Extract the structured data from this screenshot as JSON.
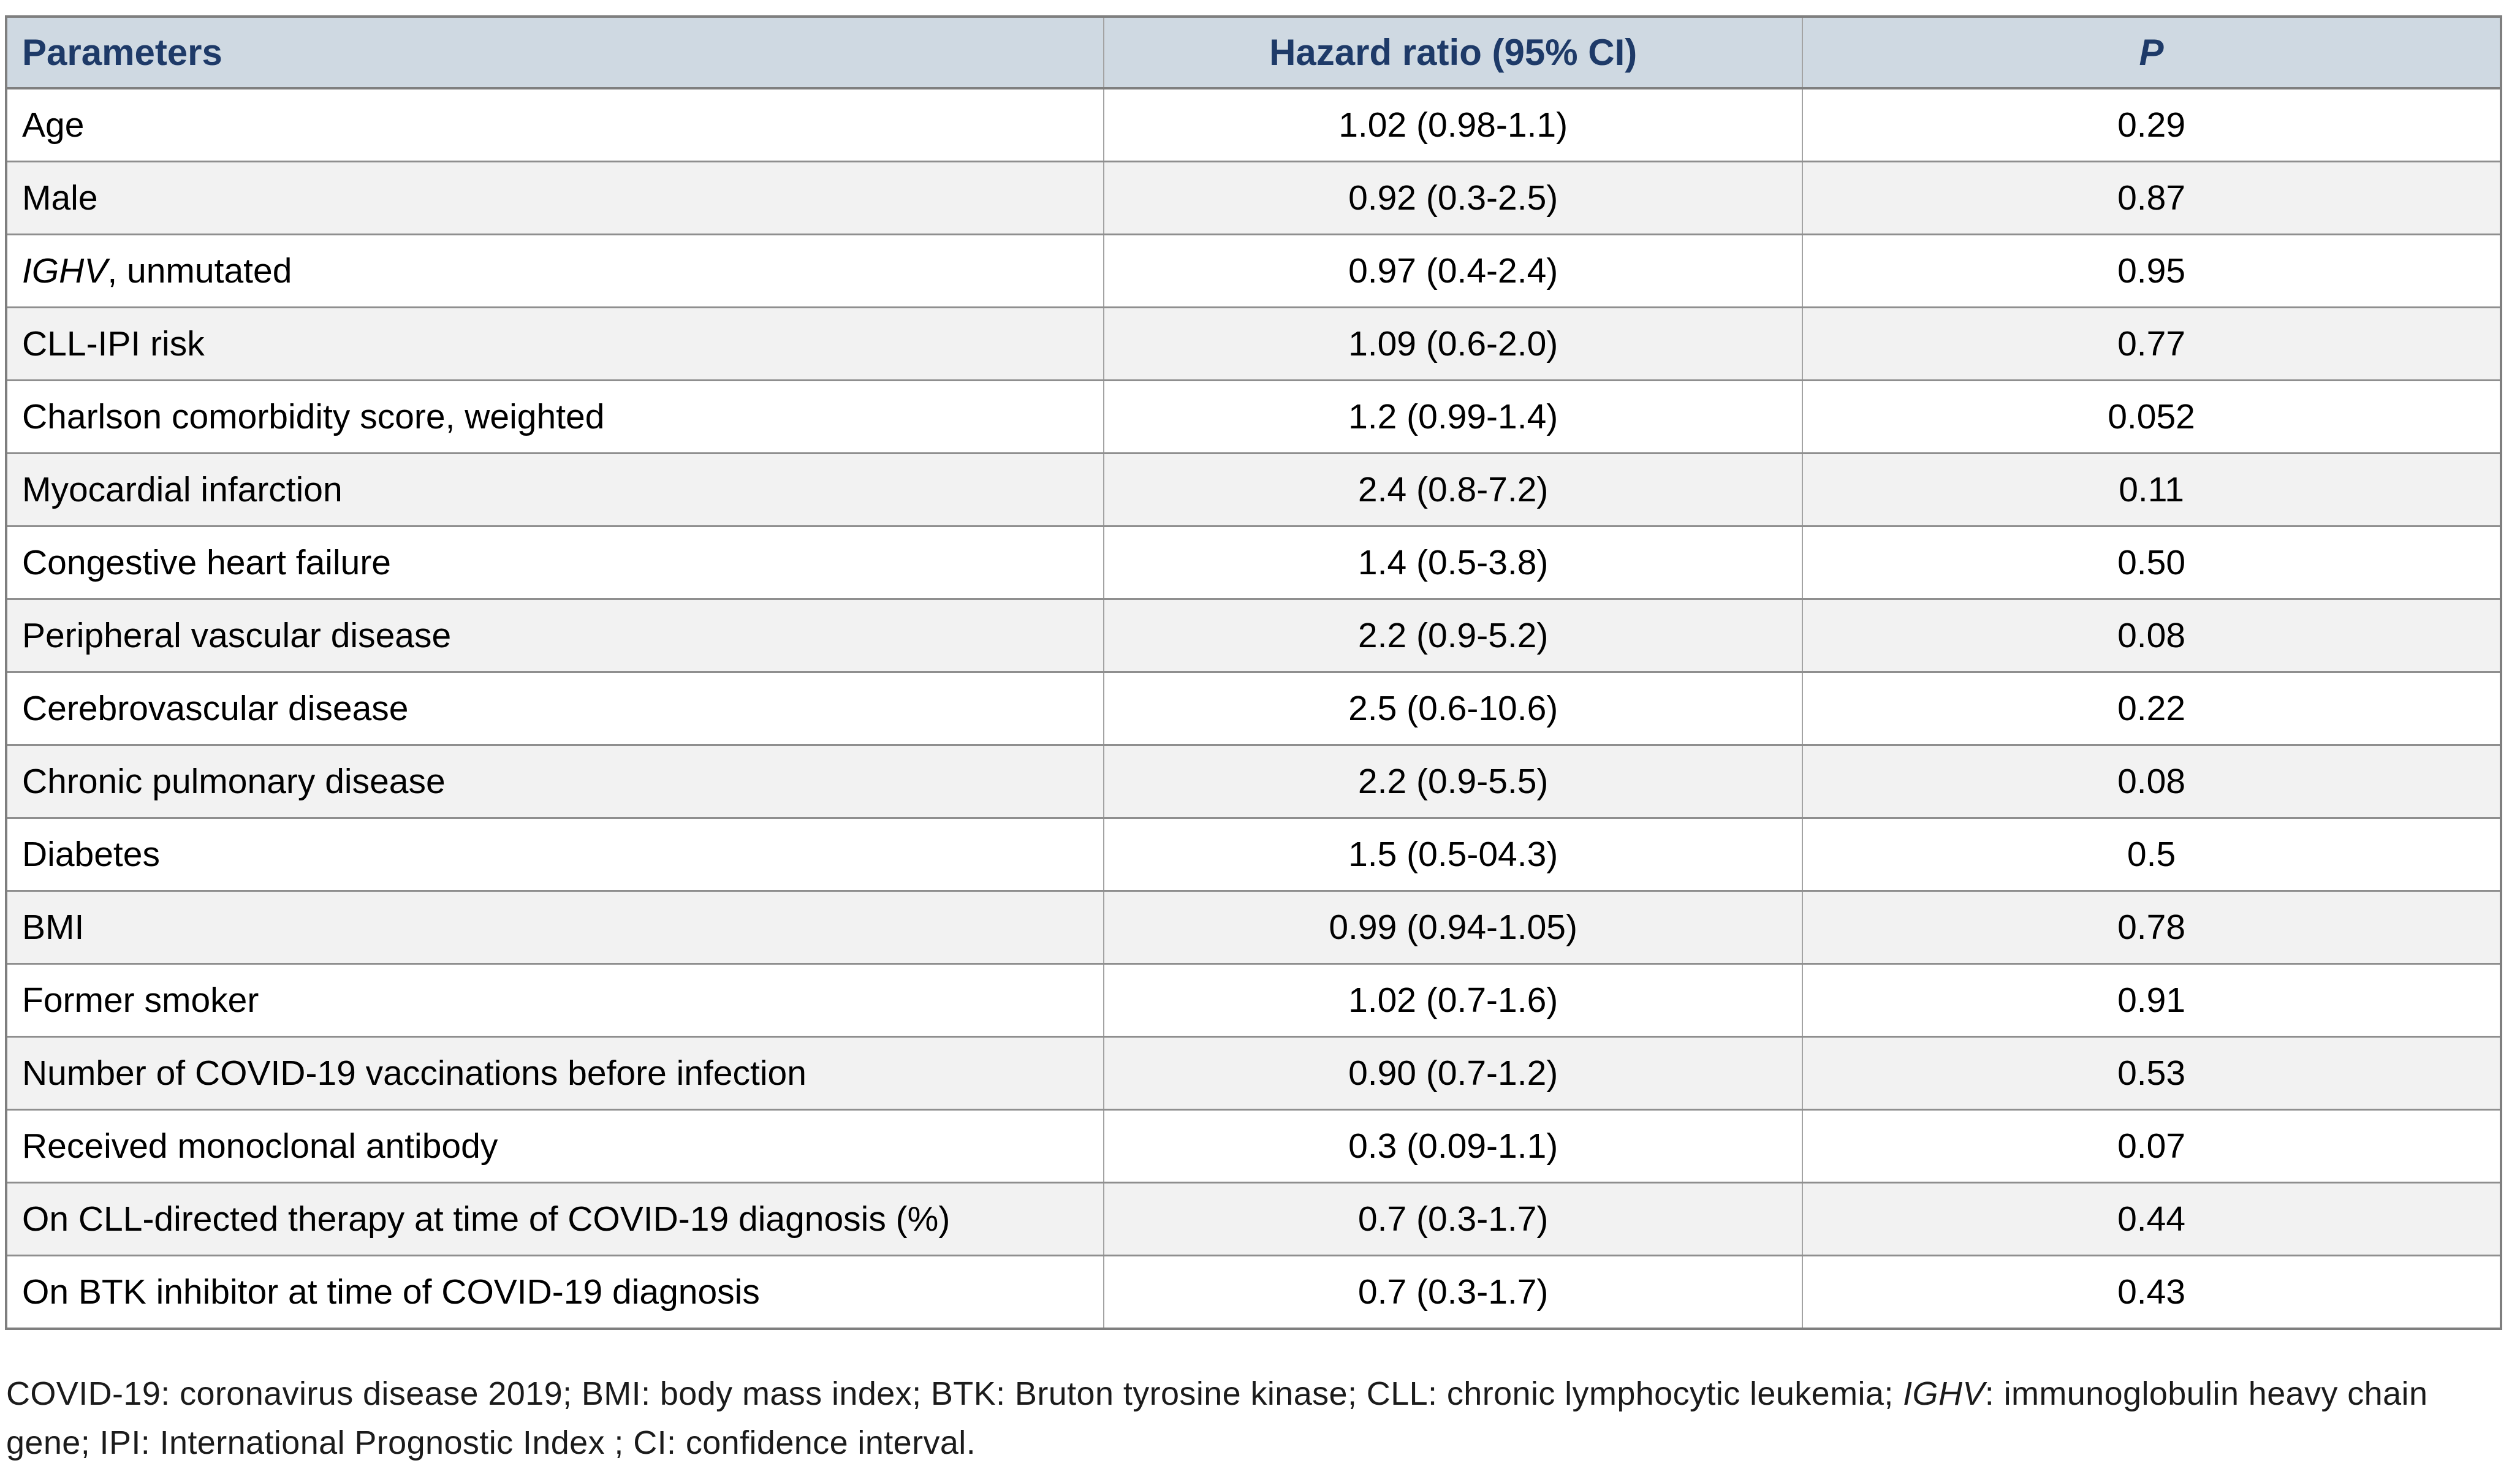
{
  "table": {
    "columns": {
      "parameters": "Parameters",
      "hazard_ratio": "Hazard ratio (95% CI)",
      "p": "P"
    },
    "rows": [
      {
        "param": "Age",
        "hr": "1.02 (0.98-1.1)",
        "p": "0.29"
      },
      {
        "param": "Male",
        "hr": "0.92 (0.3-2.5)",
        "p": "0.87"
      },
      {
        "param_italic": "IGHV",
        "param_rest": ", unmutated",
        "hr": "0.97 (0.4-2.4)",
        "p": "0.95"
      },
      {
        "param": "CLL-IPI risk",
        "hr": "1.09 (0.6-2.0)",
        "p": "0.77"
      },
      {
        "param": "Charlson comorbidity score, weighted",
        "hr": "1.2 (0.99-1.4)",
        "p": "0.052"
      },
      {
        "param": "Myocardial infarction",
        "hr": "2.4 (0.8-7.2)",
        "p": "0.11"
      },
      {
        "param": "Congestive heart failure",
        "hr": "1.4 (0.5-3.8)",
        "p": "0.50"
      },
      {
        "param": "Peripheral vascular disease",
        "hr": "2.2 (0.9-5.2)",
        "p": "0.08"
      },
      {
        "param": "Cerebrovascular disease",
        "hr": "2.5 (0.6-10.6)",
        "p": "0.22"
      },
      {
        "param": "Chronic pulmonary disease",
        "hr": "2.2 (0.9-5.5)",
        "p": "0.08"
      },
      {
        "param": "Diabetes",
        "hr": "1.5 (0.5-04.3)",
        "p": "0.5"
      },
      {
        "param": "BMI",
        "hr": "0.99 (0.94-1.05)",
        "p": "0.78"
      },
      {
        "param": "Former smoker",
        "hr": "1.02 (0.7-1.6)",
        "p": "0.91"
      },
      {
        "param": "Number of COVID-19 vaccinations before infection",
        "hr": "0.90 (0.7-1.2)",
        "p": "0.53"
      },
      {
        "param": "Received monoclonal antibody",
        "hr": "0.3 (0.09-1.1)",
        "p": "0.07"
      },
      {
        "param": "On CLL-directed therapy at time of COVID-19 diagnosis (%)",
        "hr": "0.7 (0.3-1.7)",
        "p": "0.44"
      },
      {
        "param": "On BTK inhibitor at time of COVID-19 diagnosis",
        "hr": "0.7 (0.3-1.7)",
        "p": "0.43"
      }
    ]
  },
  "footnote": {
    "part1": "COVID-19: coronavirus disease 2019; BMI: body mass index; BTK: Bruton tyrosine kinase; CLL: chronic lymphocytic leukemia; ",
    "ighv": "IGHV",
    "part2": ": immunoglobulin heavy chain gene; IPI: International Prognostic Index ; CI: confidence interval."
  },
  "colors": {
    "header_bg": "#cfd9e2",
    "header_text": "#1e3a68",
    "row_alt_bg": "#f2f2f2",
    "border": "#7f7f7f"
  }
}
